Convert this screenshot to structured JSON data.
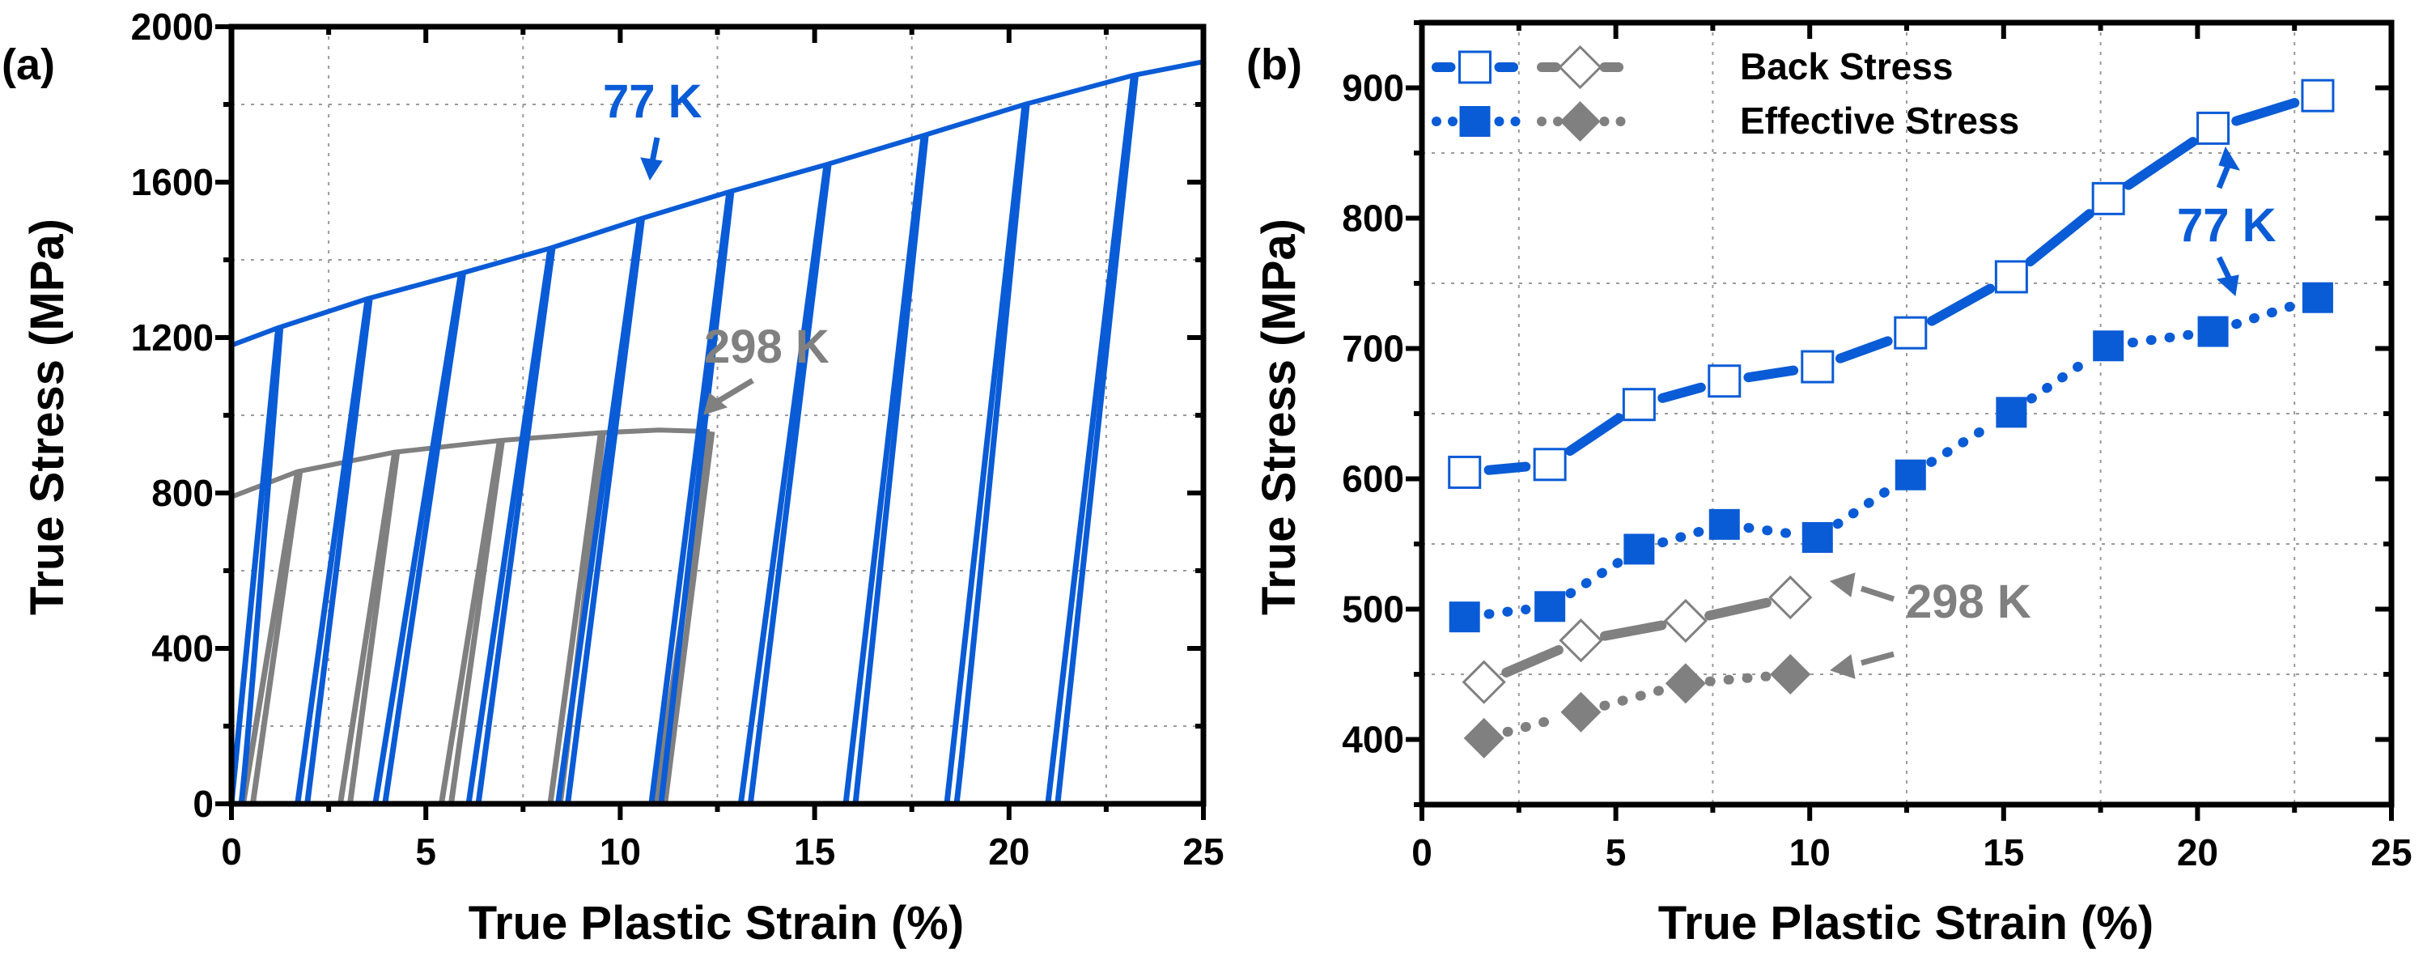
{
  "colors": {
    "blue": "#0a5bd6",
    "gray": "#808080",
    "axis": "#000000",
    "grid": "#9a9a9a"
  },
  "chart_data": [
    {
      "panel": "(a)",
      "type": "line",
      "xlabel": "True Plastic Strain (%)",
      "ylabel": "True Stress (MPa)",
      "xlim": [
        0,
        25
      ],
      "ylim": [
        0,
        2000
      ],
      "xticks": [
        "0",
        "5",
        "10",
        "15",
        "20",
        "25"
      ],
      "yticks": [
        "0",
        "400",
        "800",
        "1200",
        "1600",
        "2000"
      ],
      "grid": true,
      "annotations": [
        "77 K",
        "298 K"
      ],
      "series": [
        {
          "name": "77 K",
          "color_key": "blue",
          "envelope": {
            "x": [
              0,
              1.2,
              3.5,
              5.9,
              8.2,
              10.5,
              12.8,
              15.3,
              17.8,
              20.4,
              23.2,
              25
            ],
            "y": [
              1180,
              1225,
              1300,
              1365,
              1430,
              1505,
              1575,
              1645,
              1720,
              1800,
              1875,
              1910
            ]
          },
          "unload_cycles": [
            {
              "x_top": 1.2,
              "y_top": 1225,
              "x_zero": 0.0
            },
            {
              "x_top": 3.5,
              "y_top": 1300,
              "x_zero": 1.7
            },
            {
              "x_top": 5.9,
              "y_top": 1365,
              "x_zero": 3.7
            },
            {
              "x_top": 8.2,
              "y_top": 1430,
              "x_zero": 6.1
            },
            {
              "x_top": 10.5,
              "y_top": 1505,
              "x_zero": 8.4
            },
            {
              "x_top": 12.8,
              "y_top": 1575,
              "x_zero": 10.8
            },
            {
              "x_top": 15.3,
              "y_top": 1645,
              "x_zero": 13.1
            },
            {
              "x_top": 17.8,
              "y_top": 1720,
              "x_zero": 15.8
            },
            {
              "x_top": 20.4,
              "y_top": 1800,
              "x_zero": 18.4
            },
            {
              "x_top": 23.2,
              "y_top": 1875,
              "x_zero": 21.0
            }
          ]
        },
        {
          "name": "298 K",
          "color_key": "gray",
          "envelope": {
            "x": [
              0,
              1.7,
              4.2,
              6.9,
              9.5,
              11.0,
              12.3
            ],
            "y": [
              790,
              855,
              905,
              935,
              955,
              962,
              958
            ]
          },
          "unload_cycles": [
            {
              "x_top": 1.7,
              "y_top": 855,
              "x_zero": 0.3
            },
            {
              "x_top": 4.2,
              "y_top": 905,
              "x_zero": 2.8
            },
            {
              "x_top": 6.9,
              "y_top": 935,
              "x_zero": 5.4
            },
            {
              "x_top": 9.5,
              "y_top": 955,
              "x_zero": 8.2
            },
            {
              "x_top": 12.3,
              "y_top": 958,
              "x_zero": 10.9
            }
          ]
        }
      ]
    },
    {
      "panel": "(b)",
      "type": "line",
      "xlabel": "True Plastic Strain (%)",
      "ylabel": "True Stress (MPa)",
      "xlim": [
        0,
        25
      ],
      "ylim": [
        350,
        950
      ],
      "xticks": [
        "0",
        "5",
        "10",
        "15",
        "20",
        "25"
      ],
      "yticks": [
        "400",
        "500",
        "600",
        "700",
        "800",
        "900"
      ],
      "grid": true,
      "legend": {
        "placement": "top-left",
        "entries": [
          "Back Stress",
          "Effective Stress"
        ]
      },
      "annotations": [
        "77 K",
        "298 K"
      ],
      "series": [
        {
          "name": "Back Stress 77 K",
          "color_key": "blue",
          "marker": "open-square",
          "line": "dash",
          "x": [
            1.1,
            3.3,
            5.6,
            7.8,
            10.2,
            12.6,
            15.2,
            17.7,
            20.4,
            23.1
          ],
          "y": [
            605,
            611,
            657,
            675,
            686,
            712,
            755,
            815,
            869,
            894
          ]
        },
        {
          "name": "Effective Stress 77 K",
          "color_key": "blue",
          "marker": "filled-square",
          "line": "dot",
          "x": [
            1.1,
            3.3,
            5.6,
            7.8,
            10.2,
            12.6,
            15.2,
            17.7,
            20.4,
            23.1
          ],
          "y": [
            494,
            502,
            546,
            565,
            555,
            603,
            651,
            702,
            713,
            739
          ]
        },
        {
          "name": "Back Stress 298 K",
          "color_key": "gray",
          "marker": "open-diamond",
          "line": "dash",
          "x": [
            1.6,
            4.1,
            6.8,
            9.5
          ],
          "y": [
            444,
            476,
            491,
            509
          ]
        },
        {
          "name": "Effective Stress 298 K",
          "color_key": "gray",
          "marker": "filled-diamond",
          "line": "dot",
          "x": [
            1.6,
            4.1,
            6.8,
            9.5
          ],
          "y": [
            401,
            421,
            443,
            450
          ]
        }
      ]
    }
  ]
}
